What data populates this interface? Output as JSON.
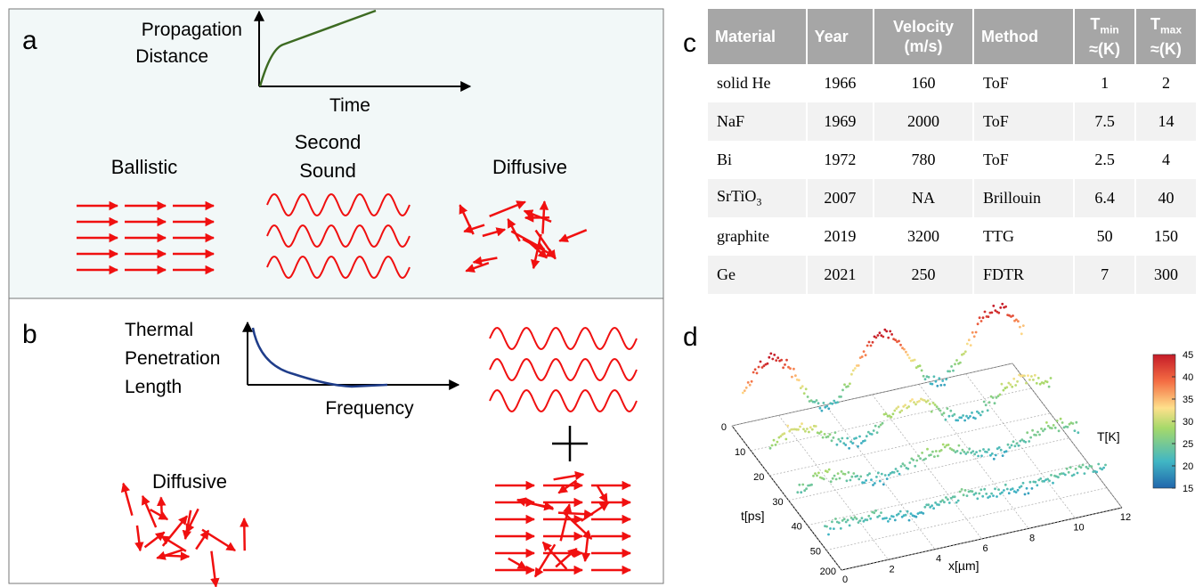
{
  "panel_a": {
    "label": "a",
    "y_label": [
      "Propagation",
      "Distance"
    ],
    "x_label": "Time",
    "ballistic": "Ballistic",
    "second_sound": [
      "Second",
      "Sound"
    ],
    "diffusive": "Diffusive"
  },
  "panel_b": {
    "label": "b",
    "y_label": [
      "Thermal",
      "Penetration",
      "Length"
    ],
    "x_label": "Frequency",
    "diffusive": "Diffusive"
  },
  "panel_c": {
    "label": "c",
    "table": {
      "header": [
        {
          "text": "Material"
        },
        {
          "text": "Year"
        },
        {
          "text": "Velocity",
          "text2": "(m/s)"
        },
        {
          "text": "Method"
        },
        {
          "text": "T",
          "sub": "min",
          "text2": "≈(K)"
        },
        {
          "text": "T",
          "sub": "max",
          "text2": "≈(K)"
        }
      ],
      "rows": [
        [
          {
            "text": "solid He"
          },
          {
            "text": 1966
          },
          {
            "text": 160
          },
          {
            "text": "ToF"
          },
          {
            "text": 1
          },
          {
            "text": 2
          }
        ],
        [
          {
            "text": "NaF"
          },
          {
            "text": 1969
          },
          {
            "text": 2000
          },
          {
            "text": "ToF"
          },
          {
            "text": 7.5
          },
          {
            "text": 14
          }
        ],
        [
          {
            "text": "Bi"
          },
          {
            "text": 1972
          },
          {
            "text": 780
          },
          {
            "text": "ToF"
          },
          {
            "text": 2.5
          },
          {
            "text": 4
          }
        ],
        [
          {
            "text": "SrTiO",
            "sub": "3"
          },
          {
            "text": 2007
          },
          {
            "text": "NA"
          },
          {
            "text": "Brillouin"
          },
          {
            "text": 6.4
          },
          {
            "text": 40
          }
        ],
        [
          {
            "text": "graphite"
          },
          {
            "text": 2019
          },
          {
            "text": 3200
          },
          {
            "text": "TTG"
          },
          {
            "text": 50
          },
          {
            "text": 150
          }
        ],
        [
          {
            "text": "Ge"
          },
          {
            "text": 2021
          },
          {
            "text": 250
          },
          {
            "text": "FDTR"
          },
          {
            "text": 7
          },
          {
            "text": 300
          }
        ]
      ]
    }
  },
  "panel_d": {
    "label": "d",
    "t_label": "t[ps]",
    "x_label": "x[µm]",
    "colorbar_label": "T[K]",
    "tticks": [
      0,
      10,
      20,
      30,
      40,
      50,
      200
    ],
    "xticks": [
      0,
      2,
      4,
      6,
      8,
      10,
      12
    ],
    "colorbar_range": [
      15,
      45
    ],
    "colorbar_ticks": [
      15,
      20,
      25,
      30,
      35,
      40,
      45
    ]
  }
}
